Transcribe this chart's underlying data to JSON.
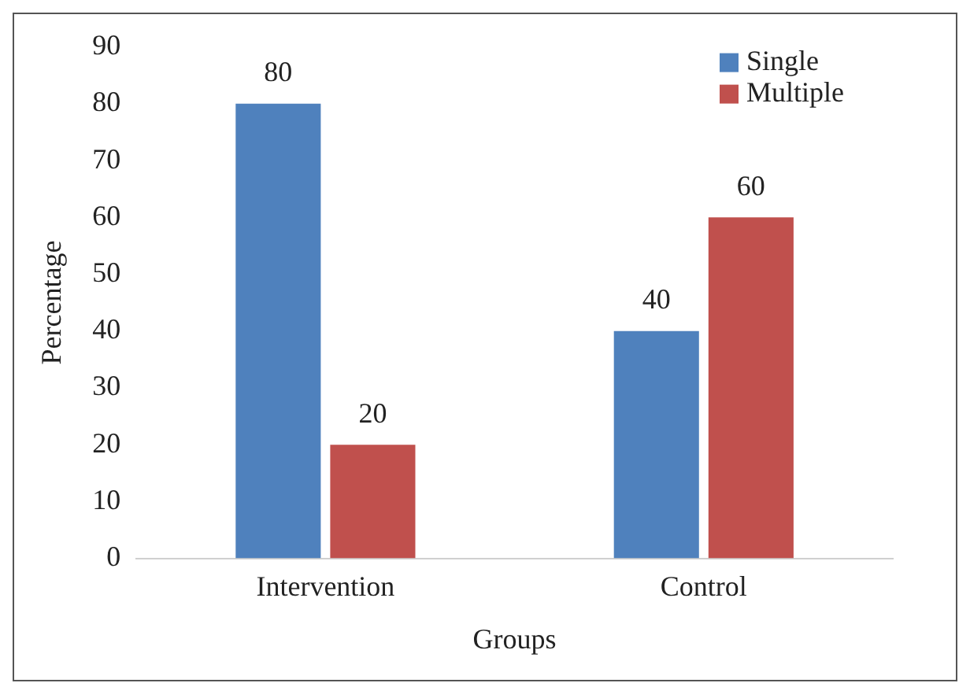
{
  "chart_data": {
    "type": "bar",
    "xlabel": "Groups",
    "ylabel": "Percentage",
    "categories": [
      "Intervention",
      "Control"
    ],
    "series": [
      {
        "name": "Single",
        "color": "#4f81bd",
        "values": [
          80,
          40
        ]
      },
      {
        "name": "Multiple",
        "color": "#c0504d",
        "values": [
          20,
          60
        ]
      }
    ],
    "ylim": [
      0,
      90
    ],
    "yticks": [
      0,
      10,
      20,
      30,
      40,
      50,
      60,
      70,
      80,
      90
    ],
    "grid": false,
    "legend": "top right",
    "data_labels": true
  }
}
